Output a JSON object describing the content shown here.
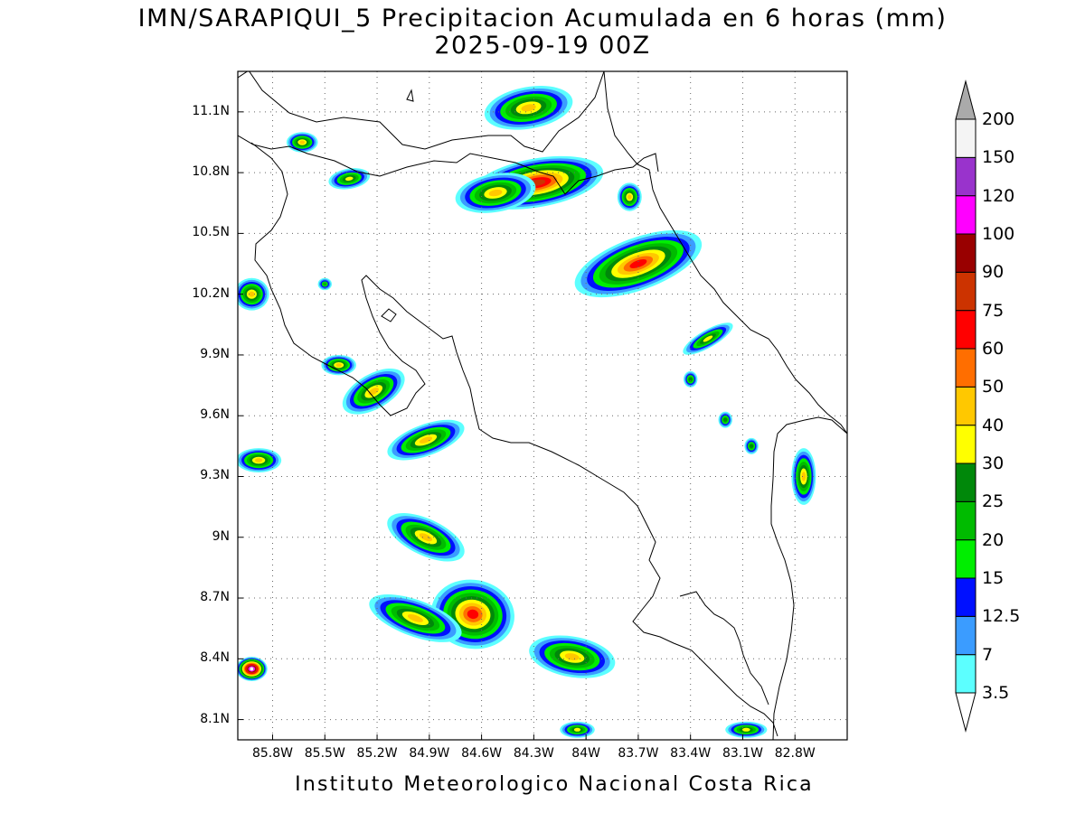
{
  "title": "IMN/SARAPIQUI_5 Precipitacion Acumulada en 6 horas (mm)",
  "subtitle": "2025-09-19 00Z",
  "credit": "Instituto Meteorologico Nacional Costa Rica",
  "axes": {
    "lon_range": [
      -86.0,
      -82.5
    ],
    "lat_range": [
      8.0,
      11.3
    ],
    "x_ticks": [
      "85.8W",
      "85.5W",
      "85.2W",
      "84.9W",
      "84.6W",
      "84.3W",
      "84W",
      "83.7W",
      "83.4W",
      "83.1W",
      "82.8W"
    ],
    "x_tick_values": [
      -85.8,
      -85.5,
      -85.2,
      -84.9,
      -84.6,
      -84.3,
      -84.0,
      -83.7,
      -83.4,
      -83.1,
      -82.8
    ],
    "y_ticks": [
      "11.1N",
      "10.8N",
      "10.5N",
      "10.2N",
      "9.9N",
      "9.6N",
      "9.3N",
      "9N",
      "8.7N",
      "8.4N",
      "8.1N"
    ],
    "y_tick_values": [
      11.1,
      10.8,
      10.5,
      10.2,
      9.9,
      9.6,
      9.3,
      9.0,
      8.7,
      8.4,
      8.1
    ],
    "grid": "dotted"
  },
  "colorbar": {
    "labels": [
      "3.5",
      "7",
      "12.5",
      "15",
      "20",
      "25",
      "30",
      "40",
      "50",
      "60",
      "75",
      "90",
      "100",
      "120",
      "150",
      "200"
    ],
    "colors": [
      "#5cffff",
      "#3b9cff",
      "#0010ff",
      "#00ee00",
      "#00bb00",
      "#00880a",
      "#ffff00",
      "#ffc800",
      "#ff6e00",
      "#ff0000",
      "#cc3300",
      "#990000",
      "#ff00ff",
      "#9933cc",
      "#f4f4f4"
    ],
    "over_color": "#aaaaaa",
    "under_color": "#ffffff"
  },
  "rain_cells": [
    {
      "lon": -84.28,
      "lat": 10.75,
      "rx": 0.14,
      "ry": 0.33,
      "rot": 80,
      "peak": "75"
    },
    {
      "lon": -84.33,
      "lat": 11.12,
      "rx": 0.12,
      "ry": 0.22,
      "rot": 80,
      "peak": "40"
    },
    {
      "lon": -84.52,
      "lat": 10.7,
      "rx": 0.11,
      "ry": 0.2,
      "rot": 80,
      "peak": "40"
    },
    {
      "lon": -83.7,
      "lat": 10.35,
      "rx": 0.15,
      "ry": 0.33,
      "rot": 70,
      "peak": "60"
    },
    {
      "lon": -83.75,
      "lat": 10.68,
      "rx": 0.07,
      "ry": 0.07,
      "rot": 0,
      "peak": "40"
    },
    {
      "lon": -84.65,
      "lat": 8.62,
      "rx": 0.24,
      "ry": 0.17,
      "rot": 10,
      "peak": "60"
    },
    {
      "lon": -84.98,
      "lat": 8.6,
      "rx": 0.28,
      "ry": 0.09,
      "rot": 20,
      "peak": "40"
    },
    {
      "lon": -84.08,
      "lat": 8.41,
      "rx": 0.25,
      "ry": 0.1,
      "rot": 10,
      "peak": "40"
    },
    {
      "lon": -84.92,
      "lat": 9.48,
      "rx": 0.09,
      "ry": 0.2,
      "rot": 70,
      "peak": "40"
    },
    {
      "lon": -85.22,
      "lat": 9.72,
      "rx": 0.1,
      "ry": 0.17,
      "rot": 60,
      "peak": "40"
    },
    {
      "lon": -84.92,
      "lat": 9.0,
      "rx": 0.24,
      "ry": 0.09,
      "rot": 25,
      "peak": "40"
    },
    {
      "lon": -85.92,
      "lat": 10.2,
      "rx": 0.1,
      "ry": 0.08,
      "rot": 0,
      "peak": "40"
    },
    {
      "lon": -85.88,
      "lat": 9.38,
      "rx": 0.13,
      "ry": 0.06,
      "rot": 0,
      "peak": "40"
    },
    {
      "lon": -85.63,
      "lat": 10.95,
      "rx": 0.09,
      "ry": 0.05,
      "rot": 0,
      "peak": "40"
    },
    {
      "lon": -85.36,
      "lat": 10.77,
      "rx": 0.12,
      "ry": 0.05,
      "rot": -10,
      "peak": "30"
    },
    {
      "lon": -85.92,
      "lat": 8.35,
      "rx": 0.09,
      "ry": 0.06,
      "rot": 0,
      "peak": "150"
    },
    {
      "lon": -82.75,
      "lat": 9.3,
      "rx": 0.07,
      "ry": 0.14,
      "rot": 0,
      "peak": "40"
    },
    {
      "lon": -83.3,
      "lat": 9.98,
      "rx": 0.05,
      "ry": 0.14,
      "rot": 60,
      "peak": "30"
    },
    {
      "lon": -85.42,
      "lat": 9.85,
      "rx": 0.1,
      "ry": 0.05,
      "rot": 0,
      "peak": "40"
    },
    {
      "lon": -83.08,
      "lat": 8.05,
      "rx": 0.12,
      "ry": 0.04,
      "rot": 0,
      "peak": "30"
    },
    {
      "lon": -84.05,
      "lat": 8.05,
      "rx": 0.1,
      "ry": 0.04,
      "rot": 0,
      "peak": "30"
    },
    {
      "lon": -83.4,
      "lat": 9.78,
      "rx": 0.04,
      "ry": 0.04,
      "rot": 0,
      "peak": "25"
    },
    {
      "lon": -83.2,
      "lat": 9.58,
      "rx": 0.04,
      "ry": 0.04,
      "rot": 0,
      "peak": "25"
    },
    {
      "lon": -83.05,
      "lat": 9.45,
      "rx": 0.04,
      "ry": 0.04,
      "rot": 0,
      "peak": "25"
    },
    {
      "lon": -85.5,
      "lat": 10.25,
      "rx": 0.04,
      "ry": 0.03,
      "rot": 0,
      "peak": "20"
    }
  ]
}
